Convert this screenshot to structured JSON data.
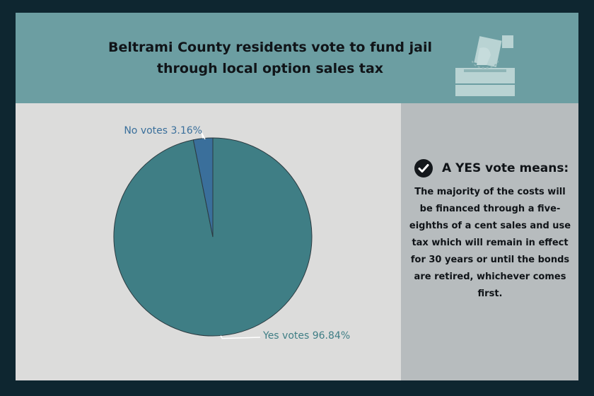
{
  "header": {
    "title_line1": "Beltrami County residents vote to fund jail",
    "title_line2": "through local option sales tax",
    "icon": "ballot-box-icon"
  },
  "chart_data": {
    "type": "pie",
    "slices": [
      {
        "label": "Yes votes 96.84%",
        "value": 96.84,
        "color": "#3f7e85",
        "label_color": "#3f7e85"
      },
      {
        "label": "No votes 3.16%",
        "value": 3.16,
        "color": "#3a6f9b",
        "label_color": "#3a6f9b"
      }
    ]
  },
  "side": {
    "icon": "check-circle-icon",
    "heading": "A YES vote means:",
    "body": "The majority of the costs will be financed through a five-eighths of a cent sales and use tax which will remain in effect for 30 years or until the bonds are retired, whichever comes first."
  },
  "colors": {
    "background": "#0e2630",
    "header": "#6c9ea2",
    "chart_panel": "#dcdcdb",
    "side_panel": "#b7bcbe"
  }
}
